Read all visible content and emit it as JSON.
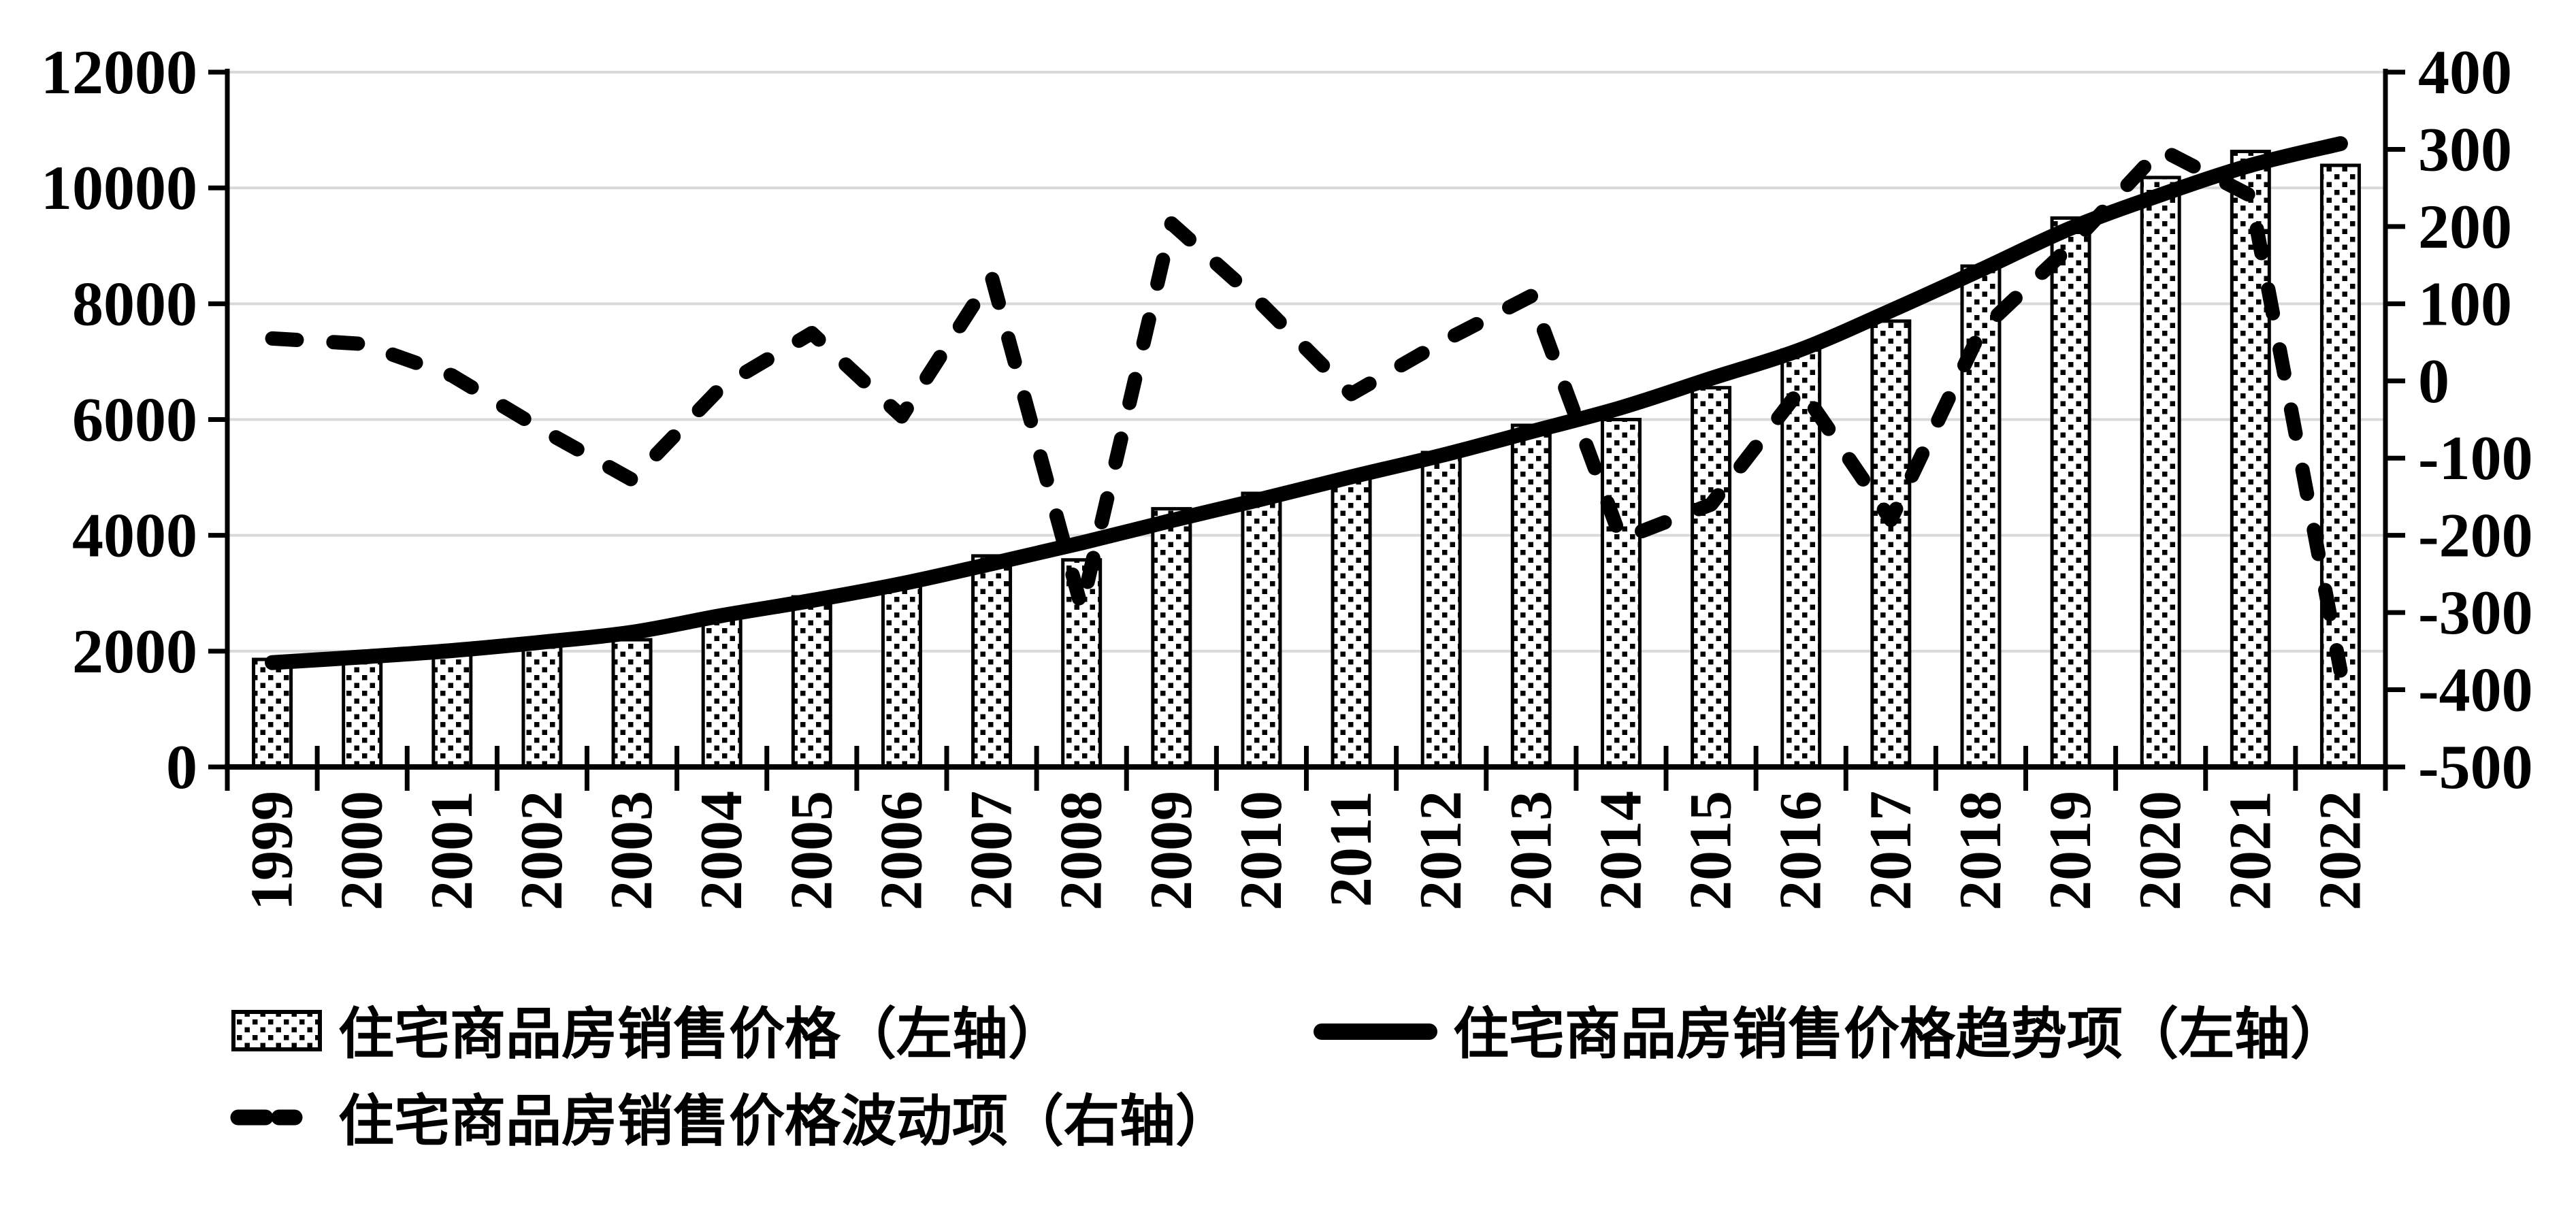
{
  "chart_data": {
    "type": "bar",
    "title": "",
    "categories": [
      "1999",
      "2000",
      "2001",
      "2002",
      "2003",
      "2004",
      "2005",
      "2006",
      "2007",
      "2008",
      "2009",
      "2010",
      "2011",
      "2012",
      "2013",
      "2014",
      "2015",
      "2016",
      "2017",
      "2018",
      "2019",
      "2020",
      "2021",
      "2022"
    ],
    "series": [
      {
        "name": "住宅商品房销售价格（左轴）",
        "type": "bar",
        "axis": "left",
        "values": [
          1857,
          1948,
          2017,
          2092,
          2197,
          2608,
          2937,
          3119,
          3645,
          3576,
          4459,
          4725,
          4993,
          5430,
          5900,
          6000,
          6550,
          7200,
          7700,
          8650,
          9480,
          10180,
          10630,
          10390
        ]
      },
      {
        "name": "住宅商品房销售价格趋势项（左轴）",
        "type": "line",
        "axis": "left",
        "values": [
          1802,
          1900,
          2010,
          2155,
          2325,
          2615,
          2875,
          3165,
          3510,
          3870,
          4255,
          4625,
          5010,
          5380,
          5790,
          6205,
          6710,
          7210,
          7880,
          8585,
          9305,
          9880,
          10390,
          10765
        ]
      },
      {
        "name": "住宅商品房销售价格波动项（右轴）",
        "type": "dashed-line",
        "axis": "right",
        "values": [
          55,
          48,
          7,
          -63,
          -128,
          -7,
          62,
          -46,
          135,
          -294,
          204,
          100,
          -17,
          50,
          110,
          -205,
          -160,
          -10,
          -180,
          65,
          175,
          300,
          240,
          -375
        ]
      }
    ],
    "left_axis": {
      "min": 0,
      "max": 12000,
      "step": 2000,
      "ticks": [
        0,
        2000,
        4000,
        6000,
        8000,
        10000,
        12000
      ]
    },
    "right_axis": {
      "min": -500,
      "max": 400,
      "step": 100,
      "ticks": [
        -500,
        -400,
        -300,
        -200,
        -100,
        0,
        100,
        200,
        300,
        400
      ]
    },
    "grid": true,
    "legend_position": "bottom",
    "colors": {
      "foreground": "#000000",
      "grid": "#d9d9d9",
      "background": "#ffffff"
    }
  }
}
